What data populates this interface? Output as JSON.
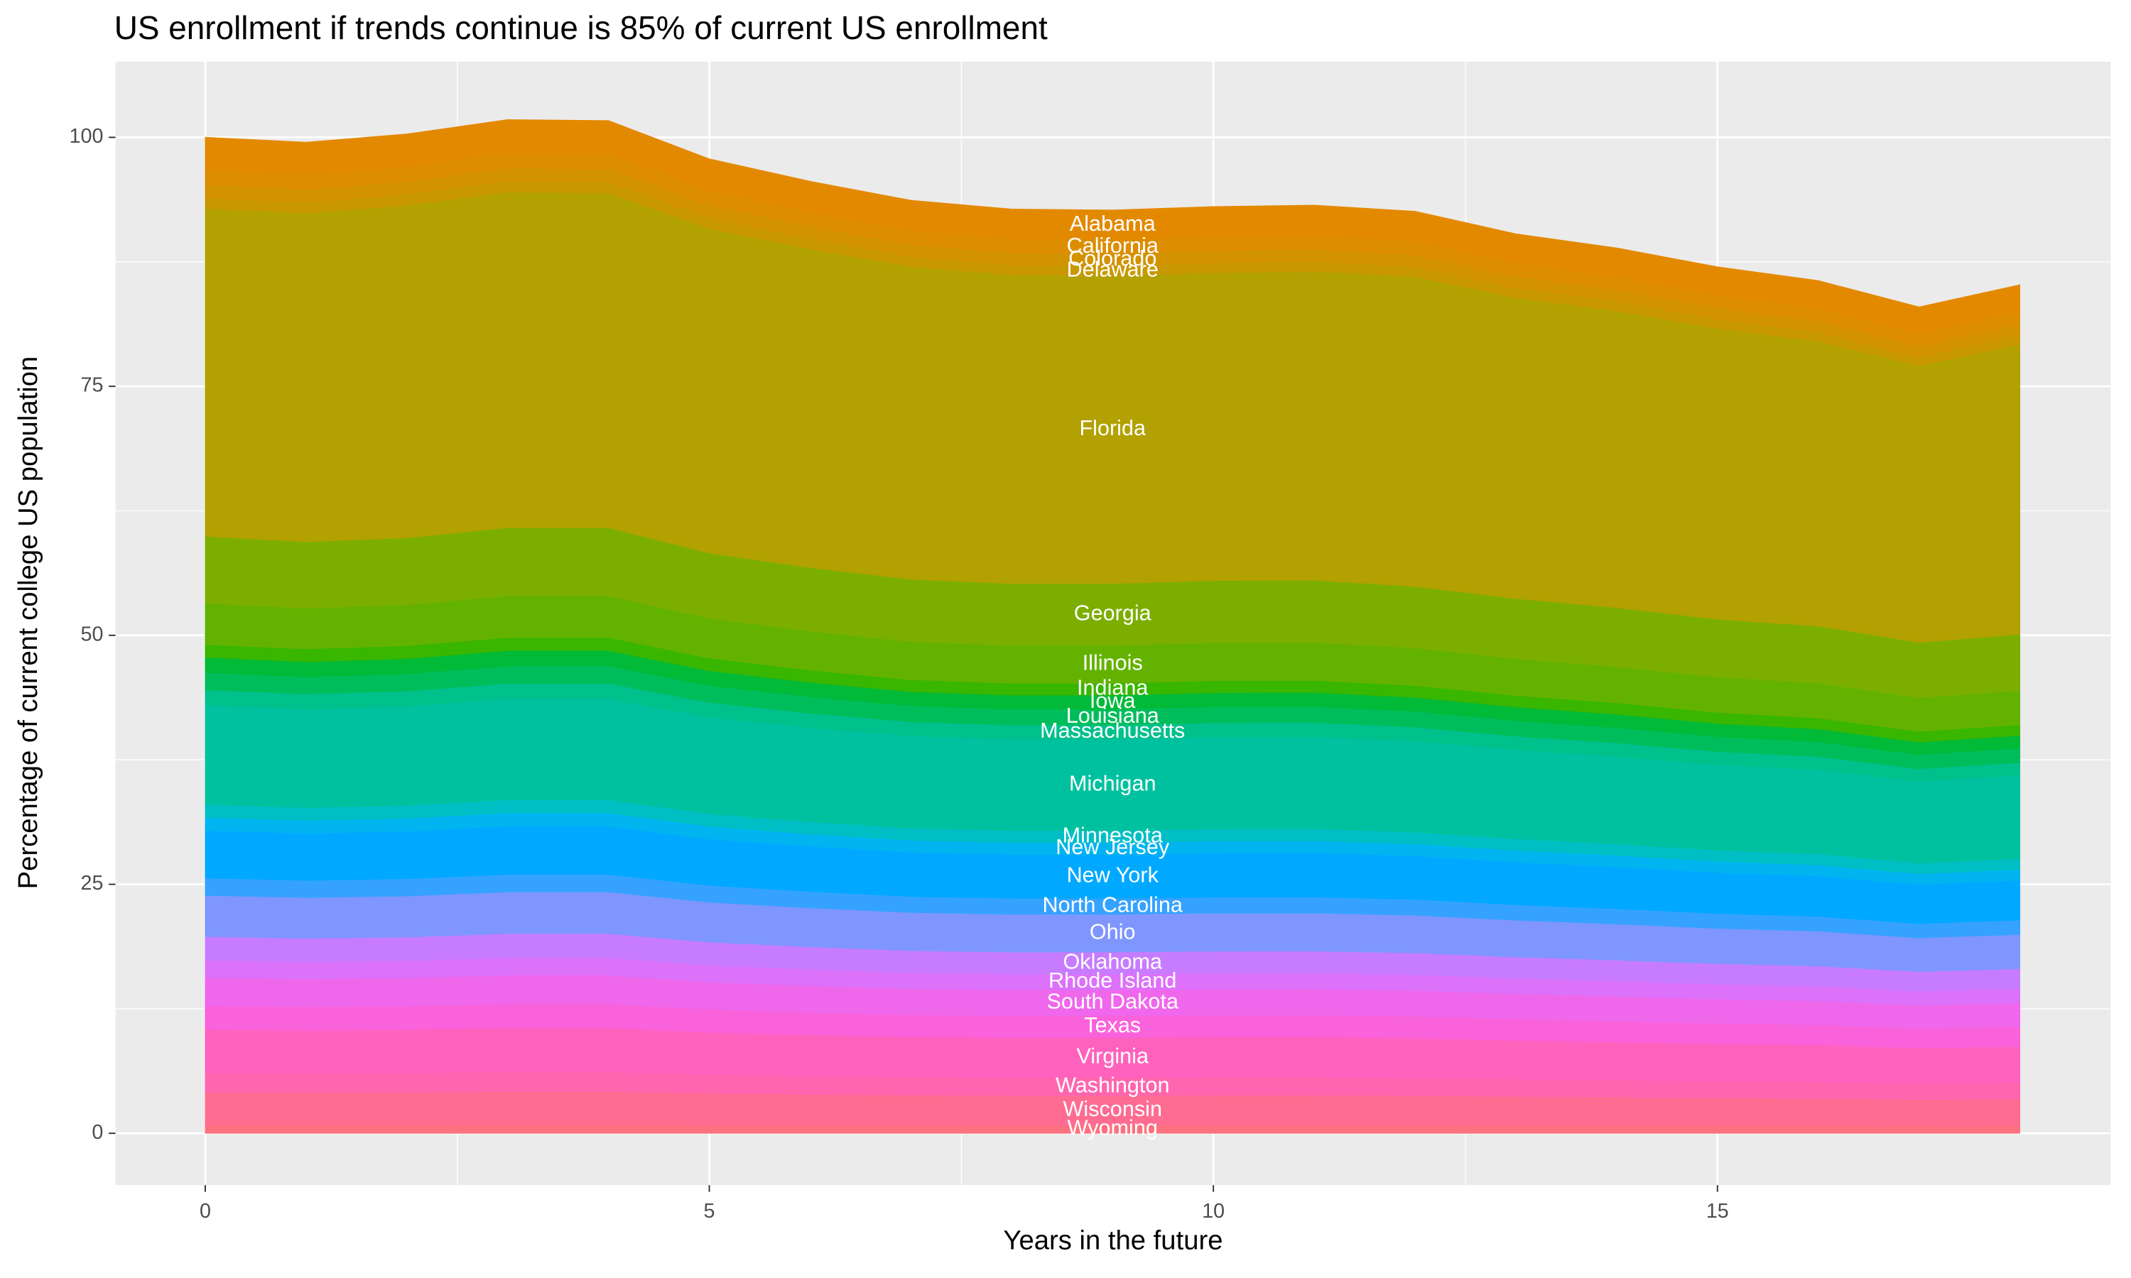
{
  "chart_data": {
    "type": "stacked_area",
    "title": "US enrollment if trends continue is 85% of current US enrollment",
    "x_label": "Years in the future",
    "y_label": "Percentage of current college US population",
    "x": [
      0,
      1,
      2,
      3,
      4,
      5,
      6,
      7,
      8,
      9,
      10,
      11,
      12,
      13,
      14,
      15,
      16,
      17,
      18
    ],
    "xlim": [
      -0.89,
      18.9
    ],
    "xticks": [
      0,
      5,
      10,
      15
    ],
    "ylim": [
      -5.2,
      107.6
    ],
    "yticks": [
      0,
      25,
      50,
      75,
      100
    ],
    "grid": true,
    "series": [
      {
        "name": "Wyoming",
        "color": "#FC717F",
        "values": [
          0.87,
          0.86,
          0.87,
          0.88,
          0.88,
          0.84,
          0.82,
          0.81,
          0.8,
          0.8,
          0.8,
          0.8,
          0.8,
          0.78,
          0.76,
          0.75,
          0.74,
          0.71,
          0.73
        ]
      },
      {
        "name": "Wisconsin",
        "color": "#FF6C91",
        "values": [
          3.26,
          3.23,
          3.25,
          3.31,
          3.31,
          3.17,
          3.09,
          3.02,
          3,
          3,
          3.02,
          3.02,
          2.99,
          2.92,
          2.87,
          2.81,
          2.77,
          2.68,
          2.72
        ]
      },
      {
        "name": "Washington",
        "color": "#FF65AE",
        "values": [
          1.95,
          1.94,
          1.95,
          1.98,
          1.98,
          1.9,
          1.85,
          1.81,
          1.8,
          1.8,
          1.81,
          1.81,
          1.79,
          1.75,
          1.72,
          1.68,
          1.66,
          1.61,
          1.63
        ]
      },
      {
        "name": "Virginia",
        "color": "#FF62BC",
        "values": [
          4.34,
          4.3,
          4.33,
          4.41,
          4.41,
          4.22,
          4.12,
          4.03,
          4,
          4,
          4.02,
          4.02,
          3.98,
          3.89,
          3.82,
          3.74,
          3.69,
          3.57,
          3.63
        ]
      },
      {
        "name": "Texas",
        "color": "#FA62DB",
        "values": [
          2.39,
          2.37,
          2.38,
          2.42,
          2.42,
          2.32,
          2.26,
          2.22,
          2.2,
          2.2,
          2.21,
          2.21,
          2.19,
          2.14,
          2.1,
          2.06,
          2.03,
          1.96,
          2.0
        ]
      },
      {
        "name": "South Dakota",
        "color": "#EF67EB",
        "values": [
          2.82,
          2.8,
          2.82,
          2.87,
          2.87,
          2.74,
          2.68,
          2.62,
          2.6,
          2.6,
          2.61,
          2.62,
          2.59,
          2.53,
          2.49,
          2.43,
          2.4,
          2.32,
          2.36
        ]
      },
      {
        "name": "Rhode Island",
        "color": "#DC71FA",
        "values": [
          1.74,
          1.72,
          1.73,
          1.76,
          1.76,
          1.69,
          1.65,
          1.61,
          1.6,
          1.6,
          1.61,
          1.61,
          1.59,
          1.56,
          1.53,
          1.5,
          1.48,
          1.43,
          1.45
        ]
      },
      {
        "name": "Oklahoma",
        "color": "#C77CFF",
        "values": [
          2.39,
          2.37,
          2.38,
          2.42,
          2.42,
          2.32,
          2.26,
          2.22,
          2.2,
          2.2,
          2.21,
          2.21,
          2.19,
          2.14,
          2.1,
          2.06,
          2.03,
          1.96,
          2.0
        ]
      },
      {
        "name": "Ohio",
        "color": "#7F96FF",
        "values": [
          4.13,
          4.09,
          4.12,
          4.19,
          4.19,
          4.01,
          3.91,
          3.83,
          3.8,
          3.8,
          3.82,
          3.82,
          3.78,
          3.69,
          3.63,
          3.55,
          3.5,
          3.39,
          3.45
        ]
      },
      {
        "name": "North Carolina",
        "color": "#35A2FF",
        "values": [
          1.74,
          1.72,
          1.73,
          1.76,
          1.76,
          1.69,
          1.65,
          1.61,
          1.6,
          1.6,
          1.61,
          1.61,
          1.59,
          1.56,
          1.53,
          1.5,
          1.48,
          1.43,
          1.45
        ]
      },
      {
        "name": "New York",
        "color": "#00A9FF",
        "values": [
          4.78,
          4.73,
          4.77,
          4.85,
          4.85,
          4.64,
          4.53,
          4.44,
          4.4,
          4.4,
          4.42,
          4.43,
          4.38,
          4.28,
          4.21,
          4.11,
          4.06,
          3.93,
          4.0
        ]
      },
      {
        "name": "New Jersey",
        "color": "#00B4F0",
        "values": [
          1.3,
          1.29,
          1.3,
          1.32,
          1.32,
          1.27,
          1.23,
          1.21,
          1.2,
          1.2,
          1.21,
          1.21,
          1.19,
          1.17,
          1.15,
          1.12,
          1.11,
          1.07,
          1.09
        ]
      },
      {
        "name": "Minnesota",
        "color": "#00BFC4",
        "values": [
          1.3,
          1.29,
          1.3,
          1.32,
          1.32,
          1.27,
          1.23,
          1.21,
          1.2,
          1.2,
          1.21,
          1.21,
          1.19,
          1.17,
          1.15,
          1.12,
          1.11,
          1.07,
          1.09
        ]
      },
      {
        "name": "Michigan",
        "color": "#00C19F",
        "values": [
          9.99,
          9.9,
          9.96,
          10.14,
          10.14,
          9.71,
          9.47,
          9.27,
          9.2,
          9.2,
          9.25,
          9.26,
          9.15,
          8.94,
          8.8,
          8.6,
          8.48,
          8.22,
          8.35
        ]
      },
      {
        "name": "Massachusetts",
        "color": "#00C08B",
        "values": [
          1.52,
          1.51,
          1.52,
          1.54,
          1.54,
          1.48,
          1.44,
          1.41,
          1.4,
          1.4,
          1.41,
          1.41,
          1.39,
          1.36,
          1.34,
          1.31,
          1.29,
          1.25,
          1.27
        ]
      },
      {
        "name": "Louisiana",
        "color": "#00BD5C",
        "values": [
          1.74,
          1.72,
          1.73,
          1.76,
          1.76,
          1.69,
          1.65,
          1.61,
          1.6,
          1.6,
          1.61,
          1.61,
          1.59,
          1.56,
          1.53,
          1.5,
          1.48,
          1.43,
          1.45
        ]
      },
      {
        "name": "Iowa",
        "color": "#00BA38",
        "values": [
          1.52,
          1.51,
          1.52,
          1.54,
          1.54,
          1.48,
          1.44,
          1.41,
          1.4,
          1.4,
          1.41,
          1.41,
          1.39,
          1.36,
          1.34,
          1.31,
          1.29,
          1.25,
          1.27
        ]
      },
      {
        "name": "Indiana",
        "color": "#39B600",
        "values": [
          1.3,
          1.29,
          1.3,
          1.32,
          1.32,
          1.27,
          1.23,
          1.21,
          1.2,
          1.2,
          1.21,
          1.21,
          1.19,
          1.17,
          1.15,
          1.12,
          1.11,
          1.07,
          1.09
        ]
      },
      {
        "name": "Illinois",
        "color": "#64B200",
        "values": [
          4.13,
          4.09,
          4.12,
          4.19,
          4.19,
          4.01,
          3.91,
          3.83,
          3.8,
          3.8,
          3.82,
          3.82,
          3.78,
          3.69,
          3.63,
          3.55,
          3.5,
          3.39,
          3.45
        ]
      },
      {
        "name": "Georgia",
        "color": "#7CAE00",
        "values": [
          6.73,
          6.67,
          6.71,
          6.83,
          6.83,
          6.54,
          6.38,
          6.25,
          6.2,
          6.2,
          6.23,
          6.24,
          6.17,
          6.03,
          5.93,
          5.8,
          5.72,
          5.54,
          5.63
        ]
      },
      {
        "name": "Florida",
        "color": "#B2A100",
        "values": [
          32.9,
          33,
          33.4,
          33.7,
          33.6,
          32.6,
          32,
          31.4,
          31,
          30.9,
          30.9,
          31,
          31.1,
          30.2,
          29.8,
          29.2,
          28.6,
          27.8,
          29.1
        ]
      },
      {
        "name": "Delaware",
        "color": "#C99800",
        "values": [
          1.09,
          1.08,
          1.08,
          1.1,
          1.1,
          1.06,
          1.03,
          1.01,
          1,
          1,
          1.01,
          1.01,
          1,
          0.97,
          0.96,
          0.94,
          0.92,
          0.89,
          0.91
        ]
      },
      {
        "name": "Colorado",
        "color": "#D39200",
        "values": [
          1.3,
          1.29,
          1.3,
          1.32,
          1.32,
          1.27,
          1.23,
          1.21,
          1.2,
          1.2,
          1.21,
          1.21,
          1.19,
          1.17,
          1.15,
          1.12,
          1.11,
          1.07,
          1.09
        ]
      },
      {
        "name": "California",
        "color": "#DC8D00",
        "values": [
          1.52,
          1.51,
          1.52,
          1.54,
          1.54,
          1.48,
          1.44,
          1.41,
          1.4,
          1.4,
          1.41,
          1.41,
          1.39,
          1.36,
          1.34,
          1.31,
          1.29,
          1.25,
          1.27
        ]
      },
      {
        "name": "Alabama",
        "color": "#E38900",
        "values": [
          3.26,
          3.23,
          3.25,
          3.31,
          3.31,
          3.17,
          3.09,
          3.02,
          3,
          3,
          3.02,
          3.02,
          2.99,
          2.92,
          2.87,
          2.81,
          2.77,
          2.68,
          2.72
        ]
      }
    ]
  }
}
